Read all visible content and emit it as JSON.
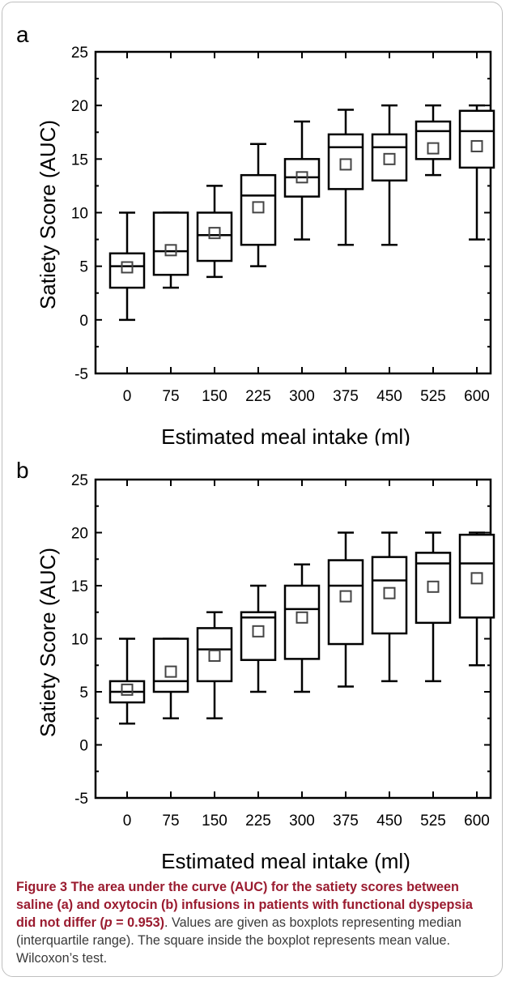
{
  "chart_data": [
    {
      "panel": "a",
      "type": "boxplot",
      "xlabel": "Estimated meal intake (ml)",
      "ylabel": "Satiety Score (AUC)",
      "ylim": [
        -5,
        25
      ],
      "yticks": [
        "-5",
        "0",
        "5",
        "10",
        "15",
        "20",
        "25"
      ],
      "categories": [
        "0",
        "75",
        "150",
        "225",
        "300",
        "375",
        "450",
        "525",
        "600"
      ],
      "boxes": [
        {
          "min": 0,
          "q1": 3,
          "median": 5,
          "q3": 6.2,
          "max": 10,
          "mean": 4.9
        },
        {
          "min": 3,
          "q1": 4.2,
          "median": 6.4,
          "q3": 10,
          "max": 10,
          "mean": 6.5
        },
        {
          "min": 4,
          "q1": 5.5,
          "median": 7.9,
          "q3": 10,
          "max": 12.5,
          "mean": 8.1
        },
        {
          "min": 5,
          "q1": 7,
          "median": 11.6,
          "q3": 13.5,
          "max": 16.4,
          "mean": 10.5
        },
        {
          "min": 7.5,
          "q1": 11.5,
          "median": 13.3,
          "q3": 15,
          "max": 18.5,
          "mean": 13.3
        },
        {
          "min": 7,
          "q1": 12.2,
          "median": 16.1,
          "q3": 17.3,
          "max": 19.6,
          "mean": 14.5
        },
        {
          "min": 7,
          "q1": 13,
          "median": 16.1,
          "q3": 17.3,
          "max": 20,
          "mean": 15
        },
        {
          "min": 13.5,
          "q1": 15,
          "median": 17.6,
          "q3": 18.5,
          "max": 20,
          "mean": 16
        },
        {
          "min": 7.5,
          "q1": 14.2,
          "median": 17.6,
          "q3": 19.5,
          "max": 20,
          "mean": 16.2
        }
      ]
    },
    {
      "panel": "b",
      "type": "boxplot",
      "xlabel": "Estimated meal intake (ml)",
      "ylabel": "Satiety Score (AUC)",
      "ylim": [
        -5,
        25
      ],
      "yticks": [
        "-5",
        "0",
        "5",
        "10",
        "15",
        "20",
        "25"
      ],
      "categories": [
        "0",
        "75",
        "150",
        "225",
        "300",
        "375",
        "450",
        "525",
        "600"
      ],
      "boxes": [
        {
          "min": 2,
          "q1": 4,
          "median": 5,
          "q3": 6,
          "max": 10,
          "mean": 5.2
        },
        {
          "min": 2.5,
          "q1": 5,
          "median": 6,
          "q3": 10,
          "max": 10,
          "mean": 6.9
        },
        {
          "min": 2.5,
          "q1": 6,
          "median": 9,
          "q3": 11,
          "max": 12.5,
          "mean": 8.4
        },
        {
          "min": 5,
          "q1": 8,
          "median": 12,
          "q3": 12.5,
          "max": 15,
          "mean": 10.7
        },
        {
          "min": 5,
          "q1": 8.1,
          "median": 12.8,
          "q3": 15,
          "max": 17,
          "mean": 12
        },
        {
          "min": 5.5,
          "q1": 9.5,
          "median": 15,
          "q3": 17.4,
          "max": 20,
          "mean": 14
        },
        {
          "min": 6,
          "q1": 10.5,
          "median": 15.5,
          "q3": 17.7,
          "max": 20,
          "mean": 14.3
        },
        {
          "min": 6,
          "q1": 11.5,
          "median": 17.1,
          "q3": 18.1,
          "max": 20,
          "mean": 14.9
        },
        {
          "min": 7.5,
          "q1": 12,
          "median": 17.1,
          "q3": 19.8,
          "max": 20,
          "mean": 15.7
        }
      ]
    }
  ],
  "caption": {
    "bold": "Figure 3 The area under the curve (AUC) for the satiety scores between saline (a) and oxytocin (b) infusions in patients with functional dyspepsia did not differ (",
    "p_symbol": "p",
    "bold_end": " = 0.953)",
    "rest": ". Values are given as boxplots representing median (interquartile range). The square inside the boxplot represents mean value. Wilcoxon’s test."
  },
  "colors": {
    "border": "#bfbfbf",
    "caption_bold": "#9a1b2f",
    "caption_text": "#3a3a3a",
    "mean_marker": "#444444"
  }
}
